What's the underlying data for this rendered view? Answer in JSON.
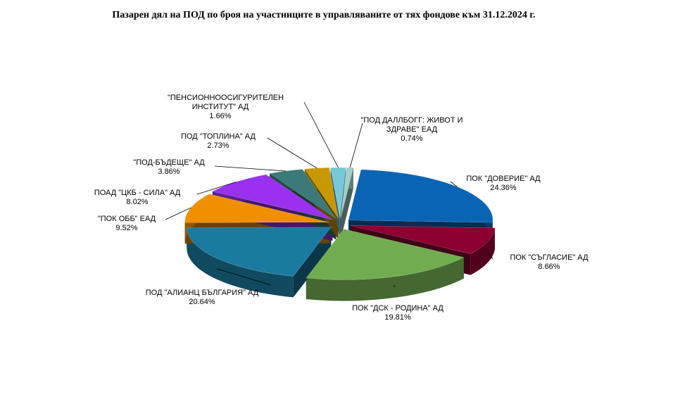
{
  "chart_data": {
    "type": "pie",
    "title": "Пазарен дял на ПОД по броя на участниците в управляваните от тях  фондове към 31.12.2024 г.",
    "categories": [
      "ПОК  \"ДОВЕРИЕ\"  АД",
      "ПОК  \"СЪГЛАСИЕ\"  АД",
      "ПОК  \"ДСК - РОДИНА\"  АД",
      "ПОД  \"АЛИАНЦ БЪЛГАРИЯ\" АД",
      "\"ПОК ОББ\"  ЕАД",
      "ПОАД  \"ЦКБ - СИЛА\"  АД",
      "\"ПОД-БЪДЕЩЕ\"   АД",
      "ПОД  \"ТОПЛИНА\"  АД",
      "\"ПЕНСИОННООСИГУРИТЕЛЕН ИНСТИТУТ\" АД",
      "\"ПОД ДАЛЛБОГГ: ЖИВОТ  И ЗДРАВЕ\"  ЕАД"
    ],
    "values": [
      24.36,
      8.66,
      19.81,
      20.64,
      9.52,
      8.02,
      3.86,
      2.73,
      1.66,
      0.74
    ],
    "value_labels": [
      "24.36%",
      "8.66%",
      "19.81%",
      "20.64%",
      "9.52%",
      "8.02%",
      "3.86%",
      "2.73%",
      "1.66%",
      "0.74%"
    ],
    "colors": [
      "#0a64b4",
      "#8b0030",
      "#70ad50",
      "#1a7ba0",
      "#f09000",
      "#9a30f0",
      "#3a7a78",
      "#c89800",
      "#78c8d8",
      "#a0d0c8"
    ]
  }
}
